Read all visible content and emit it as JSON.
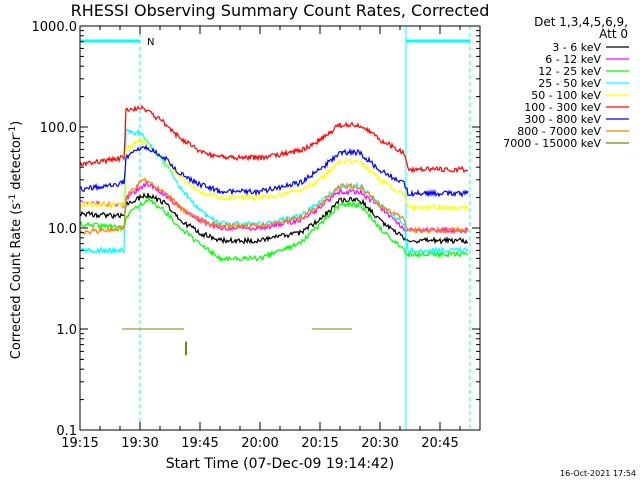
{
  "chart_data": {
    "type": "line",
    "title": "RHESSI Observing Summary Count Rates, Corrected",
    "xlabel": "Start Time (07-Dec-09 19:14:42)",
    "ylabel_main": "Corrected Count Rate (s",
    "ylabel_mid": " detector",
    "ylabel_end": ")",
    "ylabel_sup": "-1",
    "y_scale": "log",
    "ylim": [
      0.1,
      1000
    ],
    "y_ticks": [
      {
        "value": 0.1,
        "label": "0.1"
      },
      {
        "value": 1,
        "label": "1.0"
      },
      {
        "value": 10,
        "label": "10.0"
      },
      {
        "value": 100,
        "label": "100.0"
      },
      {
        "value": 1000,
        "label": "1000.0"
      }
    ],
    "x_unit": "minutes from 19:15",
    "xlim": [
      0,
      100
    ],
    "x_ticks": [
      {
        "value": 0,
        "label": "19:15"
      },
      {
        "value": 15,
        "label": "19:30"
      },
      {
        "value": 30,
        "label": "19:45"
      },
      {
        "value": 45,
        "label": "20:00"
      },
      {
        "value": 60,
        "label": "20:15"
      },
      {
        "value": 75,
        "label": "20:30"
      },
      {
        "value": 90,
        "label": "20:45"
      }
    ],
    "legend_header": [
      "Det 1,3,4,5,6,9,",
      "Att 0"
    ],
    "legend_position": "right",
    "footer_date": "16-Oct-2021 17:54",
    "night_marker_label": "N",
    "night_color": "#00ffff",
    "night_intervals": [
      [
        0,
        15.0
      ],
      [
        81.5,
        97.5
      ]
    ],
    "night_solid_lines": [
      0,
      81.5
    ],
    "night_dashed_lines": [
      15.0,
      97.5
    ],
    "series": [
      {
        "name": "3 - 6 keV",
        "color": "#000000",
        "x": [
          0,
          11,
          11.5,
          15,
          17,
          21,
          25,
          30,
          35,
          45,
          55,
          60,
          65,
          70,
          75,
          81,
          82,
          90,
          97
        ],
        "y": [
          14,
          13,
          17,
          20,
          21,
          18,
          12,
          9,
          7.5,
          7.5,
          9,
          12,
          19,
          19,
          12,
          8,
          7.5,
          7.5,
          7.5
        ]
      },
      {
        "name": "6 - 12 keV",
        "color": "#ff00ff",
        "x": [
          0,
          11,
          11.5,
          15,
          17,
          21,
          25,
          30,
          35,
          45,
          55,
          60,
          65,
          70,
          75,
          81,
          82,
          90,
          97
        ],
        "y": [
          18,
          17,
          20,
          25,
          27,
          22,
          16,
          12,
          10,
          10,
          12,
          16,
          23,
          23,
          16,
          10,
          9.5,
          9.5,
          9.5
        ]
      },
      {
        "name": "12 - 25 keV",
        "color": "#00ff00",
        "x": [
          0,
          11,
          11.5,
          15,
          17,
          21,
          25,
          30,
          35,
          45,
          55,
          60,
          65,
          70,
          75,
          81,
          82,
          90,
          97
        ],
        "y": [
          11,
          10,
          13,
          17,
          19,
          15,
          10,
          7,
          5,
          5,
          7,
          11,
          17,
          17,
          10,
          6,
          5.5,
          5.5,
          5.5
        ]
      },
      {
        "name": "25 - 50 keV",
        "color": "#00ffff",
        "x": [
          0,
          11,
          11.5,
          15,
          17,
          21,
          25,
          30,
          35,
          45,
          55,
          60,
          65,
          70,
          75,
          81,
          82,
          90,
          97
        ],
        "y": [
          6,
          6,
          90,
          88,
          70,
          45,
          25,
          15,
          11,
          11,
          13,
          18,
          26,
          26,
          17,
          11,
          6,
          6,
          6
        ]
      },
      {
        "name": "50 - 100 keV",
        "color": "#ffff00",
        "x": [
          0,
          11,
          11.5,
          15,
          17,
          21,
          25,
          30,
          35,
          45,
          55,
          60,
          65,
          70,
          75,
          81,
          82,
          90,
          97
        ],
        "y": [
          17,
          17,
          60,
          75,
          65,
          48,
          32,
          23,
          20,
          20,
          23,
          30,
          45,
          45,
          30,
          21,
          16,
          16,
          16
        ]
      },
      {
        "name": "100 - 300 keV",
        "color": "#ff0000",
        "x": [
          0,
          11,
          11.5,
          15,
          17,
          21,
          25,
          30,
          35,
          45,
          55,
          60,
          65,
          70,
          75,
          81,
          82,
          90,
          97
        ],
        "y": [
          42,
          50,
          150,
          155,
          145,
          110,
          78,
          58,
          50,
          50,
          58,
          75,
          105,
          105,
          75,
          55,
          38,
          38,
          38
        ]
      },
      {
        "name": "300 - 800 keV",
        "color": "#0000ff",
        "x": [
          0,
          11,
          11.5,
          15,
          17,
          21,
          25,
          30,
          35,
          45,
          55,
          60,
          65,
          70,
          75,
          81,
          82,
          90,
          97
        ],
        "y": [
          24,
          28,
          50,
          62,
          63,
          50,
          35,
          27,
          23,
          23,
          28,
          38,
          56,
          56,
          37,
          28,
          22,
          22,
          22
        ]
      },
      {
        "name": "800 - 7000 keV",
        "color": "#ff8000",
        "x": [
          0,
          11,
          11.5,
          15,
          17,
          21,
          25,
          30,
          35,
          45,
          55,
          60,
          65,
          70,
          75,
          81,
          82,
          90,
          97
        ],
        "y": [
          9,
          10,
          20,
          28,
          30,
          23,
          16,
          12,
          10.5,
          10.5,
          12.5,
          17,
          26,
          26,
          17,
          12,
          9.5,
          9.5,
          9.5
        ]
      },
      {
        "name": "7000 - 15000 keV",
        "color": "#808000",
        "x": [
          10.5,
          26,
          26.5,
          26.5,
          58,
          68
        ],
        "y": [
          1.0,
          1.0,
          0.55,
          0.75,
          1.0,
          1.0
        ]
      }
    ]
  }
}
